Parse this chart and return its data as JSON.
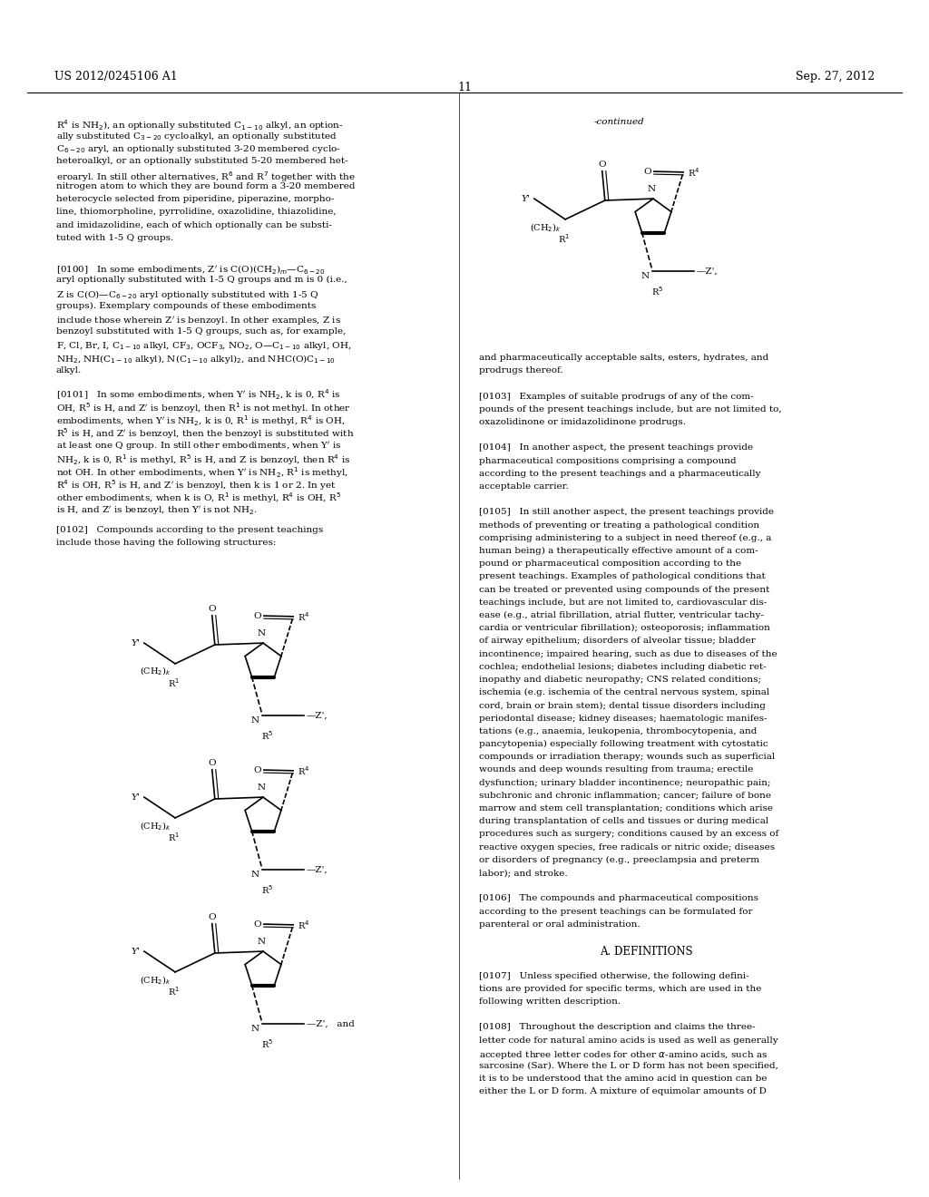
{
  "page_number": "11",
  "header_left": "US 2012/0245106 A1",
  "header_right": "Sep. 27, 2012",
  "background_color": "#ffffff",
  "text_color": "#000000",
  "left_top_lines": [
    "R$^4$ is NH$_2$), an optionally substituted C$_{1-10}$ alkyl, an option-",
    "ally substituted C$_{3-20}$ cycloalkyl, an optionally substituted",
    "C$_{6-20}$ aryl, an optionally substituted 3-20 membered cyclo-",
    "heteroalkyl, or an optionally substituted 5-20 membered het-",
    "eroaryl. In still other alternatives, R$^6$ and R$^7$ together with the",
    "nitrogen atom to which they are bound form a 3-20 membered",
    "heterocycle selected from piperidine, piperazine, morpho-",
    "line, thiomorpholine, pyrrolidine, oxazolidine, thiazolidine,",
    "and imidazolidine, each of which optionally can be substi-",
    "tuted with 1-5 Q groups."
  ],
  "para_0100": [
    "[0100]   In some embodiments, Z$'$ is C(O)(CH$_2$)$_m$—C$_{6-20}$",
    "aryl optionally substituted with 1-5 Q groups and m is 0 (i.e.,",
    "Z is C(O)—C$_{6-20}$ aryl optionally substituted with 1-5 Q",
    "groups). Exemplary compounds of these embodiments",
    "include those wherein Z$'$ is benzoyl. In other examples, Z is",
    "benzoyl substituted with 1-5 Q groups, such as, for example,",
    "F, Cl, Br, I, C$_{1-10}$ alkyl, CF$_3$, OCF$_3$, NO$_2$, O—C$_{1-10}$ alkyl, OH,",
    "NH$_2$, NH(C$_{1-10}$ alkyl), N(C$_{1-10}$ alkyl)$_2$, and NHC(O)C$_{1-10}$",
    "alkyl."
  ],
  "para_0101": [
    "[0101]   In some embodiments, when Y$'$ is NH$_2$, k is 0, R$^4$ is",
    "OH, R$^5$ is H, and Z$'$ is benzoyl, then R$^1$ is not methyl. In other",
    "embodiments, when Y$'$ is NH$_2$, k is 0, R$^1$ is methyl, R$^4$ is OH,",
    "R$^5$ is H, and Z$'$ is benzoyl, then the benzoyl is substituted with",
    "at least one Q group. In still other embodiments, when Y$'$ is",
    "NH$_2$, k is 0, R$^1$ is methyl, R$^5$ is H, and Z is benzoyl, then R$^4$ is",
    "not OH. In other embodiments, when Y$'$ is NH$_2$, R$^1$ is methyl,",
    "R$^4$ is OH, R$^5$ is H, and Z$'$ is benzoyl, then k is 1 or 2. In yet",
    "other embodiments, when k is O, R$^1$ is methyl, R$^4$ is OH, R$^5$",
    "is H, and Z$'$ is benzoyl, then Y$'$ is not NH$_2$."
  ],
  "para_0102": [
    "[0102]   Compounds according to the present teachings",
    "include those having the following structures:"
  ],
  "right_text": [
    "and pharmaceutically acceptable salts, esters, hydrates, and",
    "prodrugs thereof.",
    "",
    "[0103]   Examples of suitable prodrugs of any of the com-",
    "pounds of the present teachings include, but are not limited to,",
    "oxazolidinone or imidazolidinone prodrugs.",
    "",
    "[0104]   In another aspect, the present teachings provide",
    "pharmaceutical compositions comprising a compound",
    "according to the present teachings and a pharmaceutically",
    "acceptable carrier.",
    "",
    "[0105]   In still another aspect, the present teachings provide",
    "methods of preventing or treating a pathological condition",
    "comprising administering to a subject in need thereof (e.g., a",
    "human being) a therapeutically effective amount of a com-",
    "pound or pharmaceutical composition according to the",
    "present teachings. Examples of pathological conditions that",
    "can be treated or prevented using compounds of the present",
    "teachings include, but are not limited to, cardiovascular dis-",
    "ease (e.g., atrial fibrillation, atrial flutter, ventricular tachy-",
    "cardia or ventricular fibrillation); osteoporosis; inflammation",
    "of airway epithelium; disorders of alveolar tissue; bladder",
    "incontinence; impaired hearing, such as due to diseases of the",
    "cochlea; endothelial lesions; diabetes including diabetic ret-",
    "inopathy and diabetic neuropathy; CNS related conditions;",
    "ischemia (e.g. ischemia of the central nervous system, spinal",
    "cord, brain or brain stem); dental tissue disorders including",
    "periodontal disease; kidney diseases; haematologic manifes-",
    "tations (e.g., anaemia, leukopenia, thrombocytopenia, and",
    "pancytopenia) especially following treatment with cytostatic",
    "compounds or irradiation therapy; wounds such as superficial",
    "wounds and deep wounds resulting from trauma; erectile",
    "dysfunction; urinary bladder incontinence; neuropathic pain;",
    "subchronic and chronic inflammation; cancer; failure of bone",
    "marrow and stem cell transplantation; conditions which arise",
    "during transplantation of cells and tissues or during medical",
    "procedures such as surgery; conditions caused by an excess of",
    "reactive oxygen species, free radicals or nitric oxide; diseases",
    "or disorders of pregnancy (e.g., preeclampsia and preterm",
    "labor); and stroke.",
    "",
    "[0106]   The compounds and pharmaceutical compositions",
    "according to the present teachings can be formulated for",
    "parenteral or oral administration.",
    "",
    "A. DEFINITIONS",
    "",
    "[0107]   Unless specified otherwise, the following defini-",
    "tions are provided for specific terms, which are used in the",
    "following written description.",
    "",
    "[0108]   Throughout the description and claims the three-",
    "letter code for natural amino acids is used as well as generally",
    "accepted three letter codes for other $\\alpha$-amino acids, such as",
    "sarcosine (Sar). Where the L or D form has not been specified,",
    "it is to be understood that the amino acid in question can be",
    "either the L or D form. A mixture of equimolar amounts of D"
  ]
}
